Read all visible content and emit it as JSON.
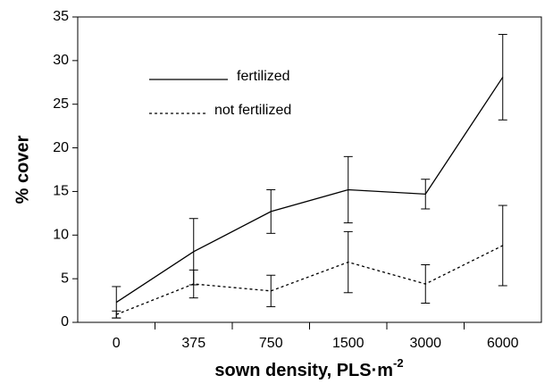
{
  "chart_data": {
    "type": "line",
    "xlabel": "sown density, PLS·m",
    "xlabel_superscript": "-2",
    "ylabel": "% cover",
    "categories": [
      "0",
      "375",
      "750",
      "1500",
      "3000",
      "6000"
    ],
    "series": [
      {
        "name": "fertilized",
        "color": "#000000",
        "dash": "solid",
        "values": [
          2.3,
          8.1,
          12.7,
          15.2,
          14.7,
          28.1
        ],
        "errors": [
          1.8,
          3.8,
          2.5,
          3.8,
          1.7,
          4.9
        ]
      },
      {
        "name": "not fertilized",
        "color": "#000000",
        "dash": "dotted",
        "values": [
          0.9,
          4.4,
          3.6,
          6.9,
          4.4,
          8.8
        ],
        "errors": [
          0.4,
          1.6,
          1.8,
          3.5,
          2.2,
          4.6
        ]
      }
    ],
    "ylim": [
      0,
      35
    ],
    "yticks": [
      0,
      5,
      10,
      15,
      20,
      25,
      30,
      35
    ],
    "grid": false,
    "legend": "upper left"
  }
}
